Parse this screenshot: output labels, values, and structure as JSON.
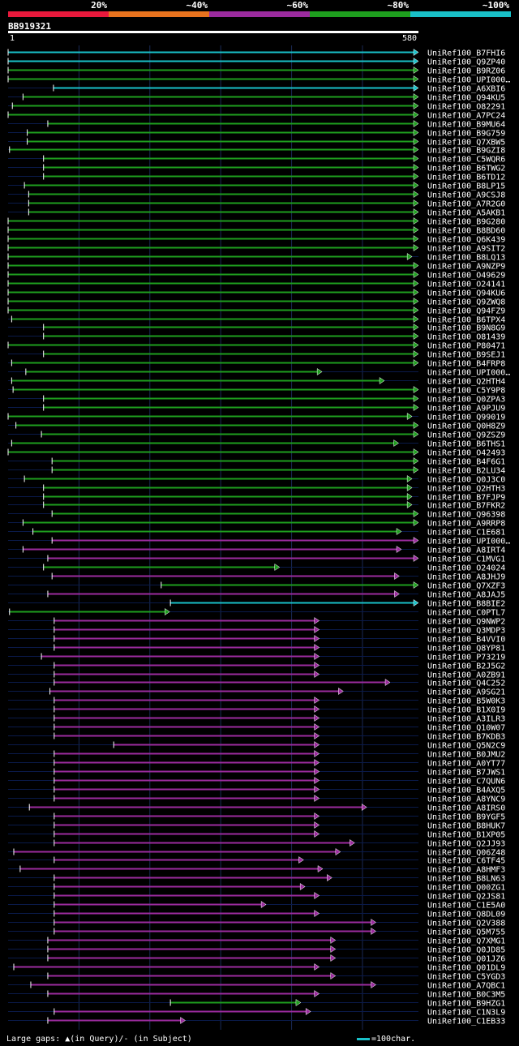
{
  "chart_data": {
    "type": "alignment-overview",
    "query_id": "BB919321",
    "query_length": 580,
    "scale_start": "1",
    "scale_end": "580",
    "identity_legend": [
      {
        "label": "20%",
        "color": "#e8193c"
      },
      {
        "label": "~40%",
        "color": "#e8731e"
      },
      {
        "label": "~60%",
        "color": "#9b2b9e"
      },
      {
        "label": "~80%",
        "color": "#1e9e1e"
      },
      {
        "label": "~100%",
        "color": "#19c0c8"
      }
    ],
    "hits": [
      {
        "name": "UniRef100_B7FHI6",
        "start": 1,
        "end": 580,
        "color": "cyan"
      },
      {
        "name": "UniRef100_Q9ZP40",
        "start": 1,
        "end": 580,
        "color": "cyan"
      },
      {
        "name": "UniRef100_B9RZ06",
        "start": 1,
        "end": 580,
        "color": "green"
      },
      {
        "name": "UniRef100_UPI000…",
        "start": 1,
        "end": 580,
        "color": "green"
      },
      {
        "name": "UniRef100_A6XBI6",
        "start": 65,
        "end": 580,
        "color": "cyan"
      },
      {
        "name": "UniRef100_Q94KU5",
        "start": 22,
        "end": 580,
        "color": "green"
      },
      {
        "name": "UniRef100_O82291",
        "start": 7,
        "end": 580,
        "color": "green"
      },
      {
        "name": "UniRef100_A7PC24",
        "start": 1,
        "end": 580,
        "color": "green"
      },
      {
        "name": "UniRef100_B9MU64",
        "start": 57,
        "end": 580,
        "color": "green"
      },
      {
        "name": "UniRef100_B9G759",
        "start": 28,
        "end": 580,
        "color": "green"
      },
      {
        "name": "UniRef100_Q7XBW5",
        "start": 28,
        "end": 580,
        "color": "green"
      },
      {
        "name": "UniRef100_B9GZI8",
        "start": 3,
        "end": 580,
        "color": "green"
      },
      {
        "name": "UniRef100_C5WQR6",
        "start": 51,
        "end": 580,
        "color": "green"
      },
      {
        "name": "UniRef100_B6TWG2",
        "start": 51,
        "end": 580,
        "color": "green"
      },
      {
        "name": "UniRef100_B6TD12",
        "start": 51,
        "end": 580,
        "color": "green"
      },
      {
        "name": "UniRef100_B8LP15",
        "start": 24,
        "end": 580,
        "color": "green"
      },
      {
        "name": "UniRef100_A9CSJ8",
        "start": 30,
        "end": 580,
        "color": "green"
      },
      {
        "name": "UniRef100_A7R2G0",
        "start": 30,
        "end": 580,
        "color": "green"
      },
      {
        "name": "UniRef100_A5AKB1",
        "start": 30,
        "end": 580,
        "color": "green"
      },
      {
        "name": "UniRef100_B9G280",
        "start": 1,
        "end": 580,
        "color": "green"
      },
      {
        "name": "UniRef100_B8BD60",
        "start": 1,
        "end": 580,
        "color": "green"
      },
      {
        "name": "UniRef100_Q6K439",
        "start": 1,
        "end": 580,
        "color": "green"
      },
      {
        "name": "UniRef100_A9SIT2",
        "start": 1,
        "end": 580,
        "color": "green"
      },
      {
        "name": "UniRef100_B8LQ13",
        "start": 1,
        "end": 571,
        "color": "green"
      },
      {
        "name": "UniRef100_A9NZP9",
        "start": 1,
        "end": 580,
        "color": "green"
      },
      {
        "name": "UniRef100_O49629",
        "start": 1,
        "end": 580,
        "color": "green"
      },
      {
        "name": "UniRef100_O24141",
        "start": 1,
        "end": 580,
        "color": "green"
      },
      {
        "name": "UniRef100_Q94KU6",
        "start": 1,
        "end": 580,
        "color": "green"
      },
      {
        "name": "UniRef100_Q9ZWQ8",
        "start": 1,
        "end": 580,
        "color": "green"
      },
      {
        "name": "UniRef100_Q94FZ9",
        "start": 1,
        "end": 580,
        "color": "green"
      },
      {
        "name": "UniRef100_B6TPX4",
        "start": 6,
        "end": 580,
        "color": "green"
      },
      {
        "name": "UniRef100_B9N8G9",
        "start": 51,
        "end": 580,
        "color": "green"
      },
      {
        "name": "UniRef100_O81439",
        "start": 51,
        "end": 580,
        "color": "green"
      },
      {
        "name": "UniRef100_P80471",
        "start": 1,
        "end": 580,
        "color": "green"
      },
      {
        "name": "UniRef100_B9SEJ1",
        "start": 51,
        "end": 580,
        "color": "green"
      },
      {
        "name": "UniRef100_B4FRP8",
        "start": 6,
        "end": 580,
        "color": "green"
      },
      {
        "name": "UniRef100_UPI000…",
        "start": 26,
        "end": 444,
        "color": "green"
      },
      {
        "name": "UniRef100_Q2HTH4",
        "start": 6,
        "end": 532,
        "color": "green"
      },
      {
        "name": "UniRef100_C5Y9P8",
        "start": 8,
        "end": 580,
        "color": "green"
      },
      {
        "name": "UniRef100_Q0ZPA3",
        "start": 51,
        "end": 580,
        "color": "green"
      },
      {
        "name": "UniRef100_A9PJU9",
        "start": 51,
        "end": 580,
        "color": "green"
      },
      {
        "name": "UniRef100_Q99019",
        "start": 1,
        "end": 571,
        "color": "green"
      },
      {
        "name": "UniRef100_Q0H8Z9",
        "start": 12,
        "end": 580,
        "color": "green"
      },
      {
        "name": "UniRef100_Q9ZSZ9",
        "start": 48,
        "end": 580,
        "color": "green"
      },
      {
        "name": "UniRef100_B6THS1",
        "start": 6,
        "end": 552,
        "color": "green"
      },
      {
        "name": "UniRef100_O42493",
        "start": 1,
        "end": 580,
        "color": "green"
      },
      {
        "name": "UniRef100_B4F6G1",
        "start": 63,
        "end": 580,
        "color": "green"
      },
      {
        "name": "UniRef100_B2LU34",
        "start": 63,
        "end": 580,
        "color": "green"
      },
      {
        "name": "UniRef100_Q0J3C0",
        "start": 24,
        "end": 571,
        "color": "green"
      },
      {
        "name": "UniRef100_Q2HTH3",
        "start": 51,
        "end": 571,
        "color": "green"
      },
      {
        "name": "UniRef100_B7FJP9",
        "start": 51,
        "end": 571,
        "color": "green"
      },
      {
        "name": "UniRef100_B7FKR2",
        "start": 51,
        "end": 571,
        "color": "green"
      },
      {
        "name": "UniRef100_Q96398",
        "start": 63,
        "end": 580,
        "color": "green"
      },
      {
        "name": "UniRef100_A9RRP8",
        "start": 22,
        "end": 580,
        "color": "green"
      },
      {
        "name": "UniRef100_C1E681",
        "start": 36,
        "end": 556,
        "color": "green"
      },
      {
        "name": "UniRef100_UPI000…",
        "start": 63,
        "end": 580,
        "color": "purple"
      },
      {
        "name": "UniRef100_A8IRT4",
        "start": 22,
        "end": 556,
        "color": "purple"
      },
      {
        "name": "UniRef100_C1MVG1",
        "start": 57,
        "end": 580,
        "color": "purple"
      },
      {
        "name": "UniRef100_O24024",
        "start": 51,
        "end": 384,
        "color": "green"
      },
      {
        "name": "UniRef100_A8JHJ9",
        "start": 63,
        "end": 553,
        "color": "purple"
      },
      {
        "name": "UniRef100_Q7XZF3",
        "start": 217,
        "end": 580,
        "color": "green"
      },
      {
        "name": "UniRef100_A8JAJ5",
        "start": 57,
        "end": 553,
        "color": "purple"
      },
      {
        "name": "UniRef100_B8BIE2",
        "start": 230,
        "end": 580,
        "color": "cyan"
      },
      {
        "name": "UniRef100_C0PTL7",
        "start": 3,
        "end": 229,
        "color": "green"
      },
      {
        "name": "UniRef100_Q9NWP2",
        "start": 66,
        "end": 440,
        "color": "purple"
      },
      {
        "name": "UniRef100_Q3MDP3",
        "start": 66,
        "end": 440,
        "color": "purple"
      },
      {
        "name": "UniRef100_B4VVI0",
        "start": 66,
        "end": 440,
        "color": "purple"
      },
      {
        "name": "UniRef100_Q8YP81",
        "start": 66,
        "end": 440,
        "color": "purple"
      },
      {
        "name": "UniRef100_P73219",
        "start": 48,
        "end": 440,
        "color": "purple"
      },
      {
        "name": "UniRef100_B2J5G2",
        "start": 66,
        "end": 440,
        "color": "purple"
      },
      {
        "name": "UniRef100_A0ZB91",
        "start": 66,
        "end": 440,
        "color": "purple"
      },
      {
        "name": "UniRef100_Q4C252",
        "start": 66,
        "end": 540,
        "color": "purple"
      },
      {
        "name": "UniRef100_A9SG21",
        "start": 60,
        "end": 474,
        "color": "purple"
      },
      {
        "name": "UniRef100_B5W0K3",
        "start": 66,
        "end": 440,
        "color": "purple"
      },
      {
        "name": "UniRef100_B1X0I9",
        "start": 66,
        "end": 440,
        "color": "purple"
      },
      {
        "name": "UniRef100_A3ILR3",
        "start": 66,
        "end": 440,
        "color": "purple"
      },
      {
        "name": "UniRef100_Q10W07",
        "start": 66,
        "end": 440,
        "color": "purple"
      },
      {
        "name": "UniRef100_B7KDB3",
        "start": 66,
        "end": 440,
        "color": "purple"
      },
      {
        "name": "UniRef100_Q5N2C9",
        "start": 150,
        "end": 440,
        "color": "purple"
      },
      {
        "name": "UniRef100_B0JMU2",
        "start": 66,
        "end": 440,
        "color": "purple"
      },
      {
        "name": "UniRef100_A0YT77",
        "start": 66,
        "end": 440,
        "color": "purple"
      },
      {
        "name": "UniRef100_B7JWS1",
        "start": 66,
        "end": 440,
        "color": "purple"
      },
      {
        "name": "UniRef100_C7QUN6",
        "start": 66,
        "end": 440,
        "color": "purple"
      },
      {
        "name": "UniRef100_B4AXQ5",
        "start": 66,
        "end": 440,
        "color": "purple"
      },
      {
        "name": "UniRef100_A8YNC9",
        "start": 66,
        "end": 440,
        "color": "purple"
      },
      {
        "name": "UniRef100_A8IRS0",
        "start": 31,
        "end": 507,
        "color": "purple"
      },
      {
        "name": "UniRef100_B9YGF5",
        "start": 66,
        "end": 440,
        "color": "purple"
      },
      {
        "name": "UniRef100_B8HUK7",
        "start": 66,
        "end": 440,
        "color": "purple"
      },
      {
        "name": "UniRef100_B1XP05",
        "start": 66,
        "end": 440,
        "color": "purple"
      },
      {
        "name": "UniRef100_Q2JJ93",
        "start": 66,
        "end": 490,
        "color": "purple"
      },
      {
        "name": "UniRef100_Q06Z48",
        "start": 9,
        "end": 470,
        "color": "purple"
      },
      {
        "name": "UniRef100_C6TF45",
        "start": 66,
        "end": 418,
        "color": "purple"
      },
      {
        "name": "UniRef100_A8HMF3",
        "start": 18,
        "end": 445,
        "color": "purple"
      },
      {
        "name": "UniRef100_B8LN63",
        "start": 66,
        "end": 458,
        "color": "purple"
      },
      {
        "name": "UniRef100_Q00ZG1",
        "start": 66,
        "end": 420,
        "color": "purple"
      },
      {
        "name": "UniRef100_Q2JS81",
        "start": 66,
        "end": 440,
        "color": "purple"
      },
      {
        "name": "UniRef100_C1E5A0",
        "start": 66,
        "end": 365,
        "color": "purple"
      },
      {
        "name": "UniRef100_Q8DL09",
        "start": 66,
        "end": 440,
        "color": "purple"
      },
      {
        "name": "UniRef100_Q2V388",
        "start": 66,
        "end": 520,
        "color": "purple"
      },
      {
        "name": "UniRef100_Q5M755",
        "start": 66,
        "end": 520,
        "color": "purple"
      },
      {
        "name": "UniRef100_Q7XMG1",
        "start": 57,
        "end": 463,
        "color": "purple"
      },
      {
        "name": "UniRef100_Q0JD85",
        "start": 57,
        "end": 463,
        "color": "purple"
      },
      {
        "name": "UniRef100_Q01JZ6",
        "start": 57,
        "end": 463,
        "color": "purple"
      },
      {
        "name": "UniRef100_Q01DL9",
        "start": 9,
        "end": 440,
        "color": "purple"
      },
      {
        "name": "UniRef100_C5YGD3",
        "start": 57,
        "end": 463,
        "color": "purple"
      },
      {
        "name": "UniRef100_A7QBC1",
        "start": 33,
        "end": 520,
        "color": "purple"
      },
      {
        "name": "UniRef100_B0C3M5",
        "start": 57,
        "end": 440,
        "color": "purple"
      },
      {
        "name": "UniRef100_B9HZG1",
        "start": 230,
        "end": 414,
        "color": "green"
      },
      {
        "name": "UniRef100_C1N3L9",
        "start": 66,
        "end": 428,
        "color": "purple"
      },
      {
        "name": "UniRef100_C1EB33",
        "start": 57,
        "end": 251,
        "color": "purple"
      }
    ]
  },
  "colors": {
    "cyan": "#19c0c8",
    "green": "#1e9e1e",
    "purple": "#9b2b9e",
    "background": "#000000",
    "baseline": "#0a1a4a"
  },
  "footer": {
    "gaps_text": "Large gaps: ▲(in Query)/- (in Subject)",
    "scale_text": "=100char."
  }
}
